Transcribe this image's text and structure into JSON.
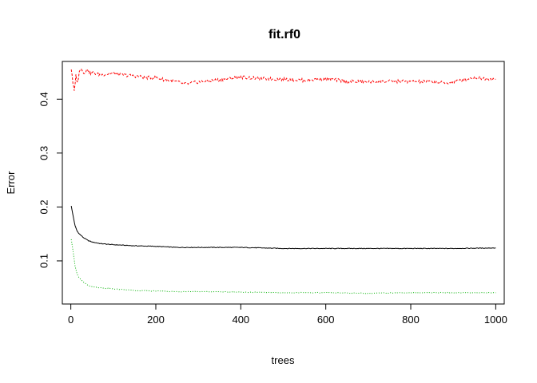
{
  "chart_data": {
    "type": "line",
    "title": "fit.rf0",
    "xlabel": "trees",
    "ylabel": "Error",
    "xlim": [
      -20,
      1020
    ],
    "ylim": [
      0.02,
      0.47
    ],
    "xticks": [
      0,
      200,
      400,
      600,
      800,
      1000
    ],
    "yticks": [
      0.1,
      0.2,
      0.3,
      0.4
    ],
    "grid": false,
    "legend": "none",
    "series": [
      {
        "color": "#000000",
        "dash": "solid",
        "x": [
          1,
          5,
          10,
          15,
          20,
          30,
          40,
          50,
          70,
          100,
          150,
          200,
          250,
          300,
          400,
          500,
          600,
          700,
          800,
          900,
          1000
        ],
        "y": [
          0.202,
          0.185,
          0.165,
          0.155,
          0.15,
          0.143,
          0.138,
          0.135,
          0.132,
          0.13,
          0.128,
          0.127,
          0.125,
          0.125,
          0.125,
          0.123,
          0.123,
          0.123,
          0.123,
          0.123,
          0.124
        ]
      },
      {
        "color": "#00b000",
        "dash": "dotted",
        "x": [
          1,
          5,
          10,
          15,
          20,
          30,
          40,
          50,
          70,
          100,
          150,
          200,
          250,
          300,
          400,
          500,
          600,
          700,
          800,
          900,
          1000
        ],
        "y": [
          0.14,
          0.12,
          0.09,
          0.075,
          0.068,
          0.06,
          0.055,
          0.052,
          0.05,
          0.048,
          0.045,
          0.044,
          0.043,
          0.043,
          0.042,
          0.041,
          0.041,
          0.04,
          0.041,
          0.041,
          0.041
        ]
      },
      {
        "color": "#ff0000",
        "dash": "dashed",
        "x": [
          1,
          3,
          5,
          8,
          10,
          12,
          15,
          18,
          20,
          25,
          30,
          35,
          40,
          45,
          50,
          60,
          70,
          80,
          100,
          120,
          150,
          180,
          200,
          220,
          250,
          270,
          300,
          350,
          400,
          450,
          500,
          550,
          600,
          650,
          700,
          750,
          800,
          850,
          880,
          900,
          930,
          950,
          1000
        ],
        "y": [
          0.455,
          0.445,
          0.43,
          0.415,
          0.425,
          0.445,
          0.43,
          0.44,
          0.45,
          0.458,
          0.448,
          0.452,
          0.455,
          0.448,
          0.45,
          0.447,
          0.445,
          0.446,
          0.448,
          0.445,
          0.443,
          0.44,
          0.44,
          0.436,
          0.432,
          0.428,
          0.432,
          0.436,
          0.441,
          0.438,
          0.437,
          0.435,
          0.438,
          0.433,
          0.432,
          0.433,
          0.433,
          0.432,
          0.43,
          0.432,
          0.437,
          0.44,
          0.437
        ]
      }
    ]
  }
}
